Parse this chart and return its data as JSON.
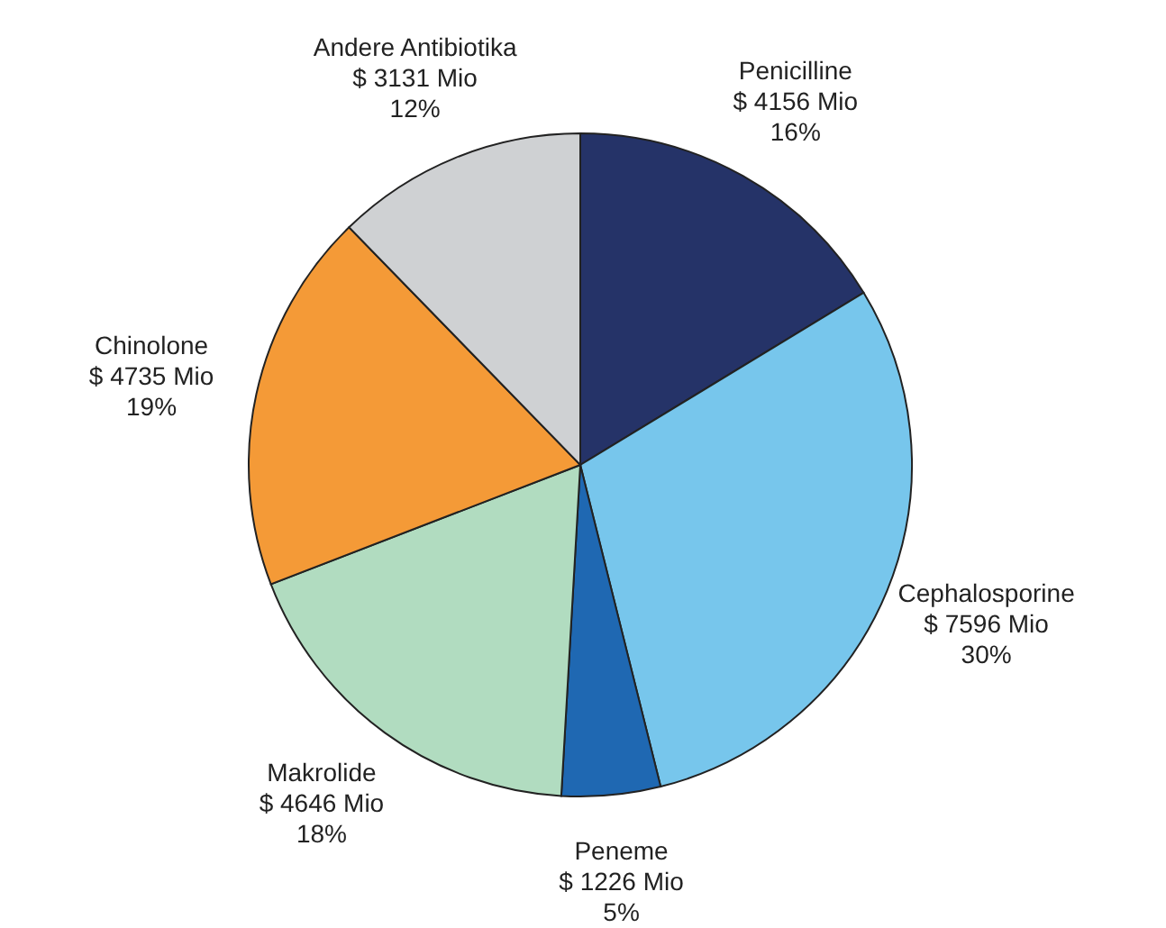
{
  "chart_data": {
    "type": "pie",
    "categories": [
      "Penicilline",
      "Cephalosporine",
      "Peneme",
      "Makrolide",
      "Chinolone",
      "Andere Antibiotika"
    ],
    "values": [
      4156,
      7596,
      1226,
      4646,
      4735,
      3131
    ],
    "colors": [
      "#253368",
      "#77c6ec",
      "#1f68b2",
      "#b1dcc0",
      "#f49a37",
      "#cfd1d3"
    ],
    "value_labels": [
      "$ 4156 Mio\n16%",
      "$ 7596 Mio\n30%",
      "$ 1226 Mio\n5%",
      "$ 4646 Mio\n18%",
      "$ 4735 Mio\n19%",
      "$ 3131 Mio\n12%"
    ]
  }
}
